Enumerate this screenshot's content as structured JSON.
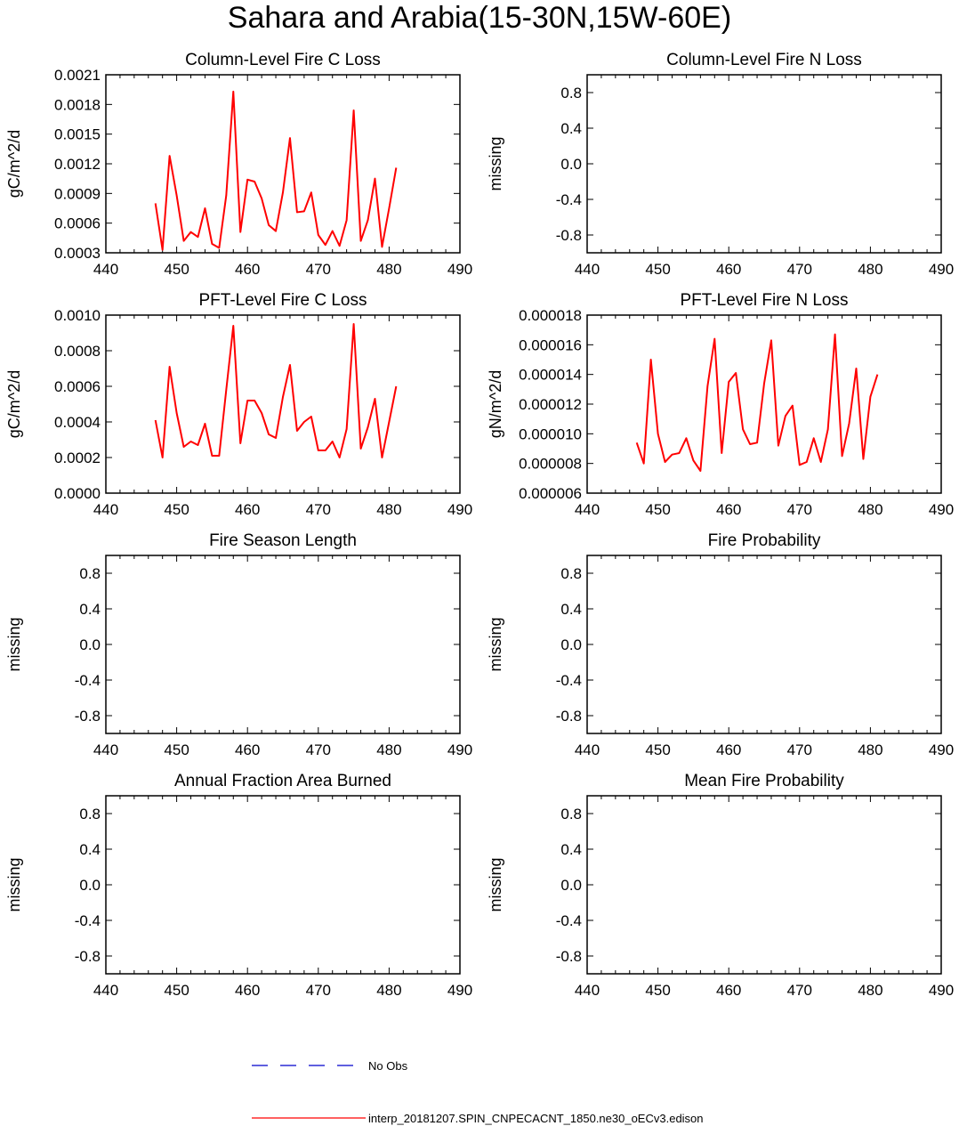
{
  "title": "Sahara and Arabia(15-30N,15W-60E)",
  "colors": {
    "model": "#ff0000",
    "obs": "#0000cc",
    "frame": "#000000"
  },
  "legend": {
    "obs_label": "No Obs",
    "model_label": "interp_20181207.SPIN_CNPECACNT_1850.ne30_oECv3.edison"
  },
  "chart_data": [
    {
      "type": "line",
      "title": "Column-Level Fire C Loss",
      "ylabel": "gC/m^2/d",
      "xlim": [
        440,
        490
      ],
      "ylim": [
        0.0003,
        0.0021
      ],
      "xticks": [
        "440",
        "450",
        "460",
        "470",
        "480",
        "490"
      ],
      "yticks": [
        "0.0003",
        "0.0006",
        "0.0009",
        "0.0012",
        "0.0015",
        "0.0018",
        "0.0021"
      ],
      "series": [
        {
          "color": "#ff0000",
          "x": [
            447,
            448,
            449,
            450,
            451,
            452,
            453,
            454,
            455,
            456,
            457,
            458,
            459,
            460,
            461,
            462,
            463,
            464,
            465,
            466,
            467,
            468,
            469,
            470,
            471,
            472,
            473,
            474,
            475,
            476,
            477,
            478,
            479,
            480,
            481
          ],
          "values": [
            0.0008,
            0.00033,
            0.00128,
            0.00088,
            0.00042,
            0.00051,
            0.00046,
            0.00075,
            0.00039,
            0.00035,
            0.00088,
            0.00193,
            0.00051,
            0.00104,
            0.00102,
            0.00085,
            0.00058,
            0.00052,
            0.00091,
            0.00146,
            0.00071,
            0.00072,
            0.00091,
            0.00048,
            0.00038,
            0.00052,
            0.00037,
            0.00063,
            0.00174,
            0.00042,
            0.00063,
            0.00105,
            0.00036,
            0.00075,
            0.00116
          ]
        }
      ]
    },
    {
      "type": "line",
      "title": "Column-Level Fire N Loss",
      "ylabel": "missing",
      "xlim": [
        440,
        490
      ],
      "ylim": [
        -1,
        1
      ],
      "xticks": [
        "440",
        "450",
        "460",
        "470",
        "480",
        "490"
      ],
      "yticks": [
        "-0.8",
        "-0.4",
        "0.0",
        "0.4",
        "0.8"
      ],
      "series": []
    },
    {
      "type": "line",
      "title": "PFT-Level Fire C Loss",
      "ylabel": "gC/m^2/d",
      "xlim": [
        440,
        490
      ],
      "ylim": [
        0,
        0.001
      ],
      "xticks": [
        "440",
        "450",
        "460",
        "470",
        "480",
        "490"
      ],
      "yticks": [
        "0.0000",
        "0.0002",
        "0.0004",
        "0.0006",
        "0.0008",
        "0.0010"
      ],
      "series": [
        {
          "color": "#ff0000",
          "x": [
            447,
            448,
            449,
            450,
            451,
            452,
            453,
            454,
            455,
            456,
            457,
            458,
            459,
            460,
            461,
            462,
            463,
            464,
            465,
            466,
            467,
            468,
            469,
            470,
            471,
            472,
            473,
            474,
            475,
            476,
            477,
            478,
            479,
            480,
            481
          ],
          "values": [
            0.00041,
            0.0002,
            0.00071,
            0.00045,
            0.00026,
            0.00029,
            0.00027,
            0.00039,
            0.00021,
            0.00021,
            0.00058,
            0.00094,
            0.00028,
            0.00052,
            0.00052,
            0.00045,
            0.00033,
            0.00031,
            0.00054,
            0.00072,
            0.00035,
            0.0004,
            0.00043,
            0.00024,
            0.00024,
            0.00029,
            0.0002,
            0.00036,
            0.00095,
            0.00025,
            0.00037,
            0.00053,
            0.0002,
            0.0004,
            0.0006
          ]
        }
      ]
    },
    {
      "type": "line",
      "title": "PFT-Level Fire N Loss",
      "ylabel": "gN/m^2/d",
      "xlim": [
        440,
        490
      ],
      "ylim": [
        6e-06,
        1.8e-05
      ],
      "xticks": [
        "440",
        "450",
        "460",
        "470",
        "480",
        "490"
      ],
      "yticks": [
        "0.000006",
        "0.000008",
        "0.000010",
        "0.000012",
        "0.000014",
        "0.000016",
        "0.000018"
      ],
      "series": [
        {
          "color": "#ff0000",
          "x": [
            447,
            448,
            449,
            450,
            451,
            452,
            453,
            454,
            455,
            456,
            457,
            458,
            459,
            460,
            461,
            462,
            463,
            464,
            465,
            466,
            467,
            468,
            469,
            470,
            471,
            472,
            473,
            474,
            475,
            476,
            477,
            478,
            479,
            480,
            481
          ],
          "values": [
            9.4e-06,
            8e-06,
            1.5e-05,
            1e-05,
            8.1e-06,
            8.6e-06,
            8.7e-06,
            9.7e-06,
            8.2e-06,
            7.5e-06,
            1.32e-05,
            1.64e-05,
            8.7e-06,
            1.35e-05,
            1.41e-05,
            1.03e-05,
            9.3e-06,
            9.4e-06,
            1.34e-05,
            1.63e-05,
            9.2e-06,
            1.12e-05,
            1.19e-05,
            7.9e-06,
            8.1e-06,
            9.7e-06,
            8.1e-06,
            1.03e-05,
            1.67e-05,
            8.5e-06,
            1.07e-05,
            1.44e-05,
            8.3e-06,
            1.25e-05,
            1.4e-05
          ]
        }
      ]
    },
    {
      "type": "line",
      "title": "Fire Season Length",
      "ylabel": "missing",
      "xlim": [
        440,
        490
      ],
      "ylim": [
        -1,
        1
      ],
      "xticks": [
        "440",
        "450",
        "460",
        "470",
        "480",
        "490"
      ],
      "yticks": [
        "-0.8",
        "-0.4",
        "0.0",
        "0.4",
        "0.8"
      ],
      "series": []
    },
    {
      "type": "line",
      "title": "Fire Probability",
      "ylabel": "missing",
      "xlim": [
        440,
        490
      ],
      "ylim": [
        -1,
        1
      ],
      "xticks": [
        "440",
        "450",
        "460",
        "470",
        "480",
        "490"
      ],
      "yticks": [
        "-0.8",
        "-0.4",
        "0.0",
        "0.4",
        "0.8"
      ],
      "series": []
    },
    {
      "type": "line",
      "title": "Annual Fraction Area Burned",
      "ylabel": "missing",
      "xlim": [
        440,
        490
      ],
      "ylim": [
        -1,
        1
      ],
      "xticks": [
        "440",
        "450",
        "460",
        "470",
        "480",
        "490"
      ],
      "yticks": [
        "-0.8",
        "-0.4",
        "0.0",
        "0.4",
        "0.8"
      ],
      "series": []
    },
    {
      "type": "line",
      "title": "Mean Fire Probability",
      "ylabel": "missing",
      "xlim": [
        440,
        490
      ],
      "ylim": [
        -1,
        1
      ],
      "xticks": [
        "440",
        "450",
        "460",
        "470",
        "480",
        "490"
      ],
      "yticks": [
        "-0.8",
        "-0.4",
        "0.0",
        "0.4",
        "0.8"
      ],
      "series": []
    }
  ]
}
